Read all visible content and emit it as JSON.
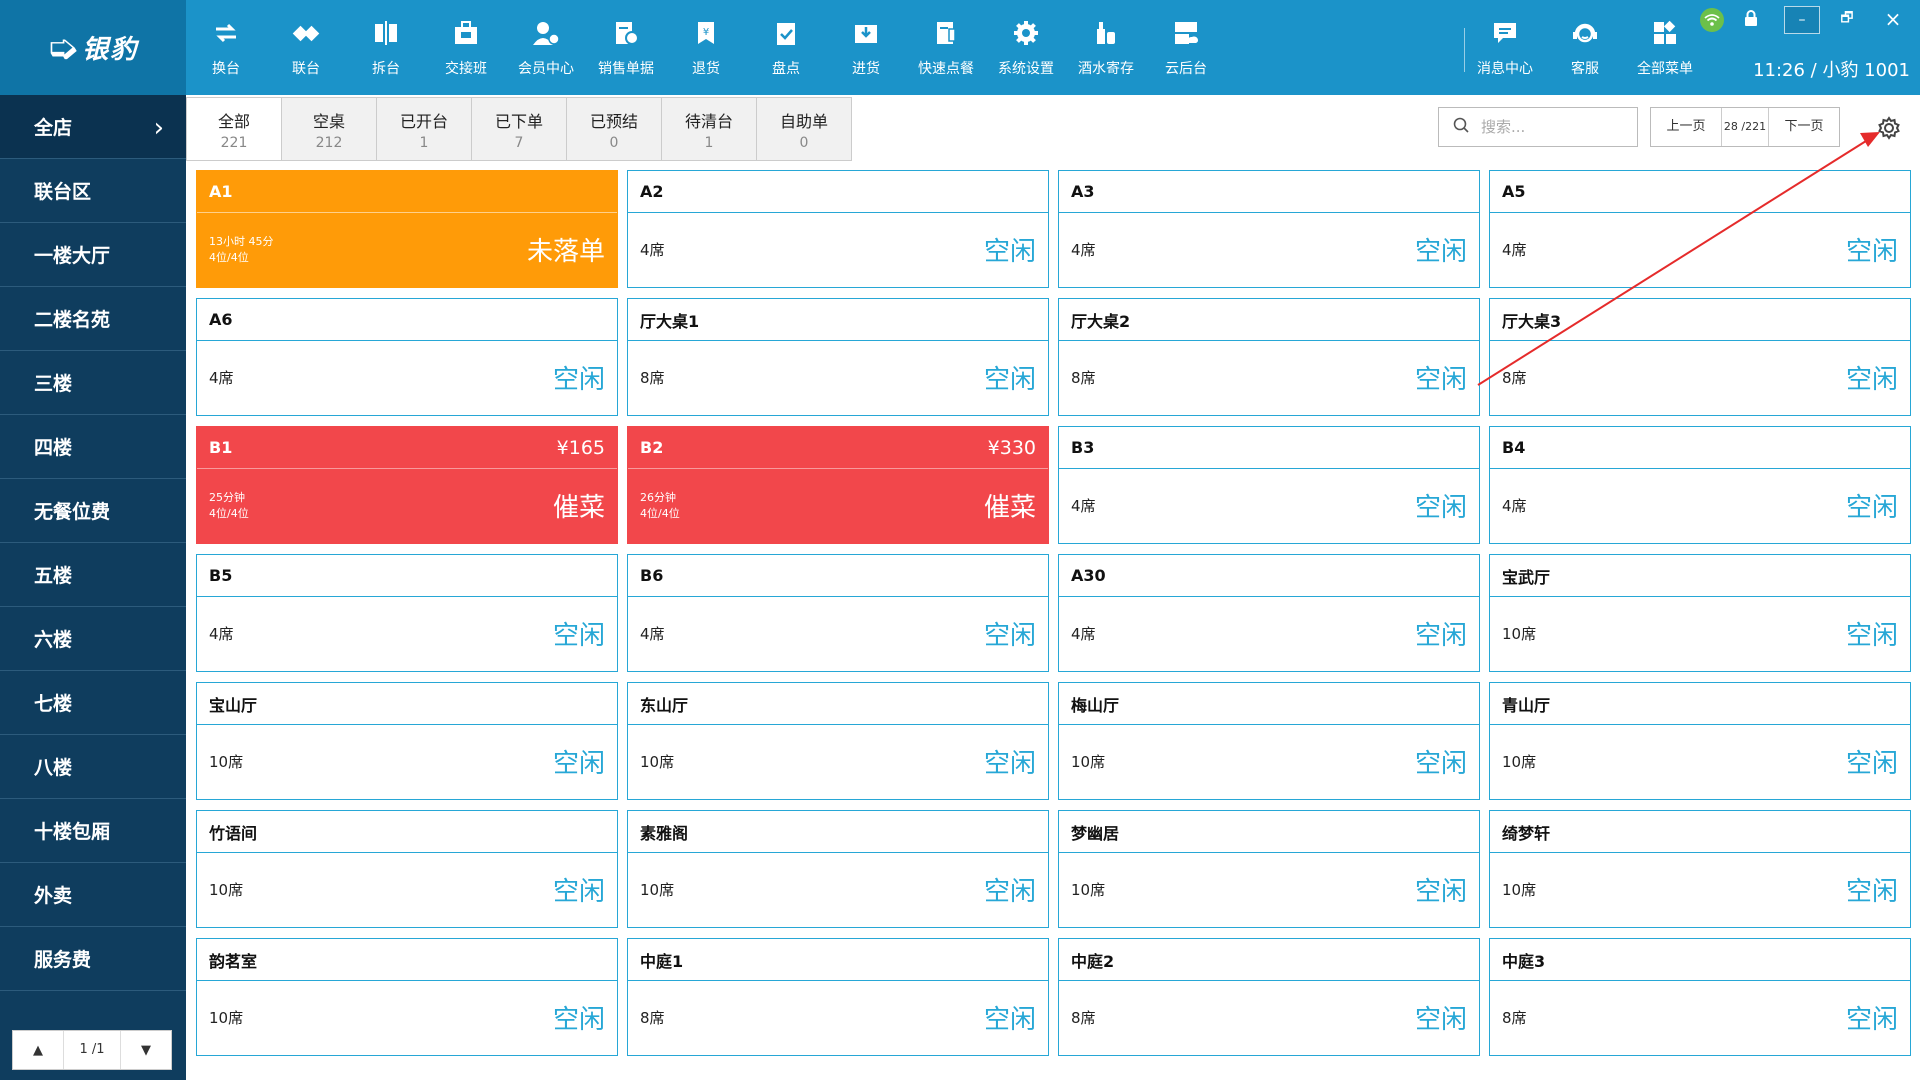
{
  "app": {
    "logo_text": "银豹",
    "user_info": "11:26  /  小豹 1001"
  },
  "toolbar": [
    {
      "label": "换台",
      "icon": "swap-table-icon"
    },
    {
      "label": "联台",
      "icon": "link-table-icon"
    },
    {
      "label": "拆台",
      "icon": "split-table-icon"
    },
    {
      "label": "交接班",
      "icon": "handover-icon"
    },
    {
      "label": "会员中心",
      "icon": "member-icon"
    },
    {
      "label": "销售单据",
      "icon": "sales-doc-icon"
    },
    {
      "label": "退货",
      "icon": "return-icon"
    },
    {
      "label": "盘点",
      "icon": "inventory-icon"
    },
    {
      "label": "进货",
      "icon": "purchase-icon"
    },
    {
      "label": "快速点餐",
      "icon": "quick-order-icon"
    },
    {
      "label": "系统设置",
      "icon": "settings-icon"
    },
    {
      "label": "酒水寄存",
      "icon": "drink-storage-icon"
    },
    {
      "label": "云后台",
      "icon": "cloud-backend-icon"
    }
  ],
  "right_tools": [
    {
      "label": "消息中心",
      "icon": "message-icon"
    },
    {
      "label": "客服",
      "icon": "support-icon"
    },
    {
      "label": "全部菜单",
      "icon": "all-menu-icon"
    }
  ],
  "sidebar": {
    "items": [
      "全店",
      "联台区",
      "一楼大厅",
      "二楼名苑",
      "三楼",
      "四楼",
      "无餐位费",
      "五楼",
      "六楼",
      "七楼",
      "八楼",
      "十楼包厢",
      "外卖",
      "服务费"
    ],
    "pager": "1 /1"
  },
  "tabs": [
    {
      "label": "全部",
      "count": "221"
    },
    {
      "label": "空桌",
      "count": "212"
    },
    {
      "label": "已开台",
      "count": "1"
    },
    {
      "label": "已下单",
      "count": "7"
    },
    {
      "label": "已预结",
      "count": "0"
    },
    {
      "label": "待清台",
      "count": "1"
    },
    {
      "label": "自助单",
      "count": "0"
    }
  ],
  "search": {
    "placeholder": "搜索..."
  },
  "pager_top": {
    "prev": "上一页",
    "page": "28 /221",
    "next": "下一页"
  },
  "tables": [
    {
      "name": "A1",
      "state": "orange",
      "line1": "13小时 45分",
      "line2": "4位/4位",
      "status": "未落单",
      "amount": ""
    },
    {
      "name": "A2",
      "state": "idle",
      "seats": "4席",
      "status": "空闲"
    },
    {
      "name": "A3",
      "state": "idle",
      "seats": "4席",
      "status": "空闲"
    },
    {
      "name": "A5",
      "state": "idle",
      "seats": "4席",
      "status": "空闲"
    },
    {
      "name": "A6",
      "state": "idle",
      "seats": "4席",
      "status": "空闲"
    },
    {
      "name": "厅大桌1",
      "state": "idle",
      "seats": "8席",
      "status": "空闲"
    },
    {
      "name": "厅大桌2",
      "state": "idle",
      "seats": "8席",
      "status": "空闲"
    },
    {
      "name": "厅大桌3",
      "state": "idle",
      "seats": "8席",
      "status": "空闲"
    },
    {
      "name": "B1",
      "state": "red",
      "line1": "25分钟",
      "line2": "4位/4位",
      "status": "催菜",
      "amount": "¥165"
    },
    {
      "name": "B2",
      "state": "red",
      "line1": "26分钟",
      "line2": "4位/4位",
      "status": "催菜",
      "amount": "¥330"
    },
    {
      "name": "B3",
      "state": "idle",
      "seats": "4席",
      "status": "空闲"
    },
    {
      "name": "B4",
      "state": "idle",
      "seats": "4席",
      "status": "空闲"
    },
    {
      "name": "B5",
      "state": "idle",
      "seats": "4席",
      "status": "空闲"
    },
    {
      "name": "B6",
      "state": "idle",
      "seats": "4席",
      "status": "空闲"
    },
    {
      "name": "A30",
      "state": "idle",
      "seats": "4席",
      "status": "空闲"
    },
    {
      "name": "宝武厅",
      "state": "idle",
      "seats": "10席",
      "status": "空闲"
    },
    {
      "name": "宝山厅",
      "state": "idle",
      "seats": "10席",
      "status": "空闲"
    },
    {
      "name": "东山厅",
      "state": "idle",
      "seats": "10席",
      "status": "空闲"
    },
    {
      "name": "梅山厅",
      "state": "idle",
      "seats": "10席",
      "status": "空闲"
    },
    {
      "name": "青山厅",
      "state": "idle",
      "seats": "10席",
      "status": "空闲"
    },
    {
      "name": "竹语间",
      "state": "idle",
      "seats": "10席",
      "status": "空闲"
    },
    {
      "name": "素雅阁",
      "state": "idle",
      "seats": "10席",
      "status": "空闲"
    },
    {
      "name": "梦幽居",
      "state": "idle",
      "seats": "10席",
      "status": "空闲"
    },
    {
      "name": "绮梦轩",
      "state": "idle",
      "seats": "10席",
      "status": "空闲"
    },
    {
      "name": "韵茗室",
      "state": "idle",
      "seats": "10席",
      "status": "空闲"
    },
    {
      "name": "中庭1",
      "state": "idle",
      "seats": "8席",
      "status": "空闲"
    },
    {
      "name": "中庭2",
      "state": "idle",
      "seats": "8席",
      "status": "空闲"
    },
    {
      "name": "中庭3",
      "state": "idle",
      "seats": "8席",
      "status": "空闲"
    }
  ],
  "colors": {
    "brand": "#1b93c9",
    "sidebar": "#0f3d5e",
    "idle": "#27a7d6",
    "unordered": "#ff9b08",
    "urge": "#f2474b",
    "annotation": "#e52b2b"
  }
}
